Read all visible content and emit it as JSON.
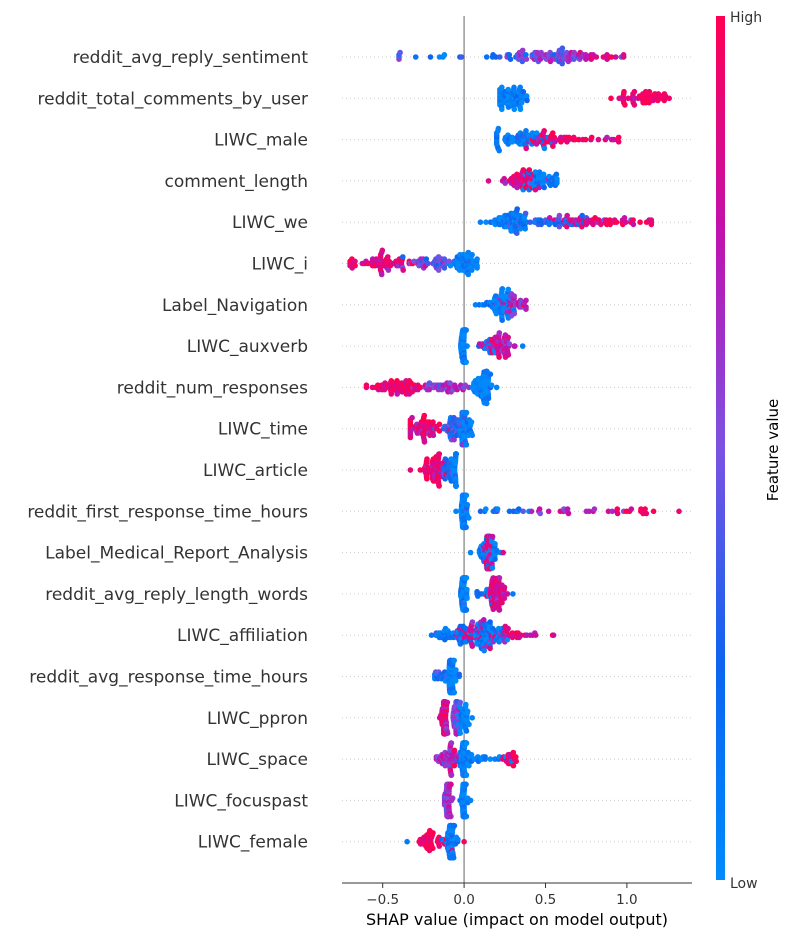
{
  "chart_data": {
    "type": "scatter",
    "subtype": "shap-beeswarm-summary",
    "xlabel": "SHAP value (impact on model output)",
    "xlim": [
      -0.75,
      1.4
    ],
    "xticks": [
      -0.5,
      0.0,
      0.5,
      1.0
    ],
    "xtick_labels": [
      "−0.5",
      "0.0",
      "0.5",
      "1.0"
    ],
    "colorbar": {
      "title": "Feature value",
      "high_label": "High",
      "low_label": "Low",
      "high_color": "#ff0052",
      "low_color": "#008bfb"
    },
    "features": [
      {
        "name": "reddit_avg_reply_sentiment",
        "range": [
          -0.4,
          0.98
        ],
        "clusters": [
          [
            0.55,
            0.15,
            0.55,
            0.6
          ],
          [
            0.25,
            0.25,
            0.3,
            0.2
          ],
          [
            -0.2,
            0.25,
            0.05,
            0.05
          ],
          [
            0.8,
            0.12,
            0.85,
            0.15
          ]
        ]
      },
      {
        "name": "reddit_total_comments_by_user",
        "range": [
          0.22,
          1.26
        ],
        "clusters": [
          [
            0.3,
            0.06,
            0.08,
            0.55
          ],
          [
            1.1,
            0.08,
            0.95,
            0.45
          ]
        ]
      },
      {
        "name": "LIWC_male",
        "range": [
          0.2,
          0.95
        ],
        "clusters": [
          [
            0.35,
            0.08,
            0.1,
            0.55
          ],
          [
            0.55,
            0.08,
            0.92,
            0.35
          ],
          [
            0.8,
            0.08,
            0.92,
            0.1
          ]
        ]
      },
      {
        "name": "comment_length",
        "range": [
          0.15,
          0.57
        ],
        "clusters": [
          [
            0.35,
            0.06,
            0.85,
            0.45
          ],
          [
            0.48,
            0.05,
            0.05,
            0.4
          ]
        ]
      },
      {
        "name": "LIWC_we",
        "range": [
          0.1,
          1.15
        ],
        "clusters": [
          [
            0.3,
            0.08,
            0.08,
            0.55
          ],
          [
            0.5,
            0.12,
            0.3,
            0.4
          ],
          [
            0.8,
            0.12,
            0.88,
            0.4
          ],
          [
            1.05,
            0.05,
            0.95,
            0.1
          ]
        ]
      },
      {
        "name": "LIWC_i",
        "range": [
          -0.7,
          0.08
        ],
        "clusters": [
          [
            -0.5,
            0.09,
            0.85,
            0.55
          ],
          [
            -0.2,
            0.1,
            0.45,
            0.35
          ],
          [
            0.0,
            0.04,
            0.05,
            0.5
          ]
        ]
      },
      {
        "name": "Label_Navigation",
        "range": [
          0.07,
          0.38
        ],
        "clusters": [
          [
            0.22,
            0.05,
            0.05,
            0.5
          ],
          [
            0.3,
            0.04,
            0.7,
            0.3
          ]
        ]
      },
      {
        "name": "LIWC_auxverb",
        "range": [
          -0.02,
          0.36
        ],
        "clusters": [
          [
            0.0,
            0.01,
            0.05,
            0.45
          ],
          [
            0.22,
            0.04,
            0.75,
            0.5
          ],
          [
            0.15,
            0.03,
            0.1,
            0.1
          ]
        ]
      },
      {
        "name": "reddit_num_responses",
        "range": [
          -0.6,
          0.2
        ],
        "clusters": [
          [
            -0.4,
            0.1,
            0.95,
            0.55
          ],
          [
            -0.1,
            0.08,
            0.6,
            0.35
          ],
          [
            0.12,
            0.03,
            0.05,
            0.6
          ]
        ]
      },
      {
        "name": "LIWC_time",
        "range": [
          -0.33,
          0.05
        ],
        "clusters": [
          [
            -0.25,
            0.05,
            0.9,
            0.5
          ],
          [
            -0.05,
            0.04,
            0.35,
            0.4
          ],
          [
            0.0,
            0.02,
            0.05,
            0.5
          ]
        ]
      },
      {
        "name": "LIWC_article",
        "range": [
          -0.33,
          -0.05
        ],
        "clusters": [
          [
            -0.18,
            0.04,
            0.9,
            0.55
          ],
          [
            -0.1,
            0.02,
            0.3,
            0.25
          ],
          [
            -0.05,
            0.01,
            0.05,
            0.35
          ]
        ]
      },
      {
        "name": "reddit_first_response_time_hours",
        "range": [
          -0.05,
          1.32
        ],
        "clusters": [
          [
            0.0,
            0.01,
            0.05,
            0.55
          ],
          [
            0.25,
            0.1,
            0.2,
            0.12
          ],
          [
            0.65,
            0.18,
            0.7,
            0.15
          ],
          [
            1.0,
            0.1,
            0.9,
            0.12
          ]
        ]
      },
      {
        "name": "Label_Medical_Report_Analysis",
        "range": [
          0.04,
          0.24
        ],
        "clusters": [
          [
            0.15,
            0.03,
            0.05,
            0.45
          ],
          [
            0.15,
            0.01,
            0.85,
            0.5
          ]
        ]
      },
      {
        "name": "reddit_avg_reply_length_words",
        "range": [
          -0.02,
          0.3
        ],
        "clusters": [
          [
            0.0,
            0.01,
            0.05,
            0.5
          ],
          [
            0.2,
            0.03,
            0.85,
            0.55
          ],
          [
            0.1,
            0.04,
            0.1,
            0.1
          ]
        ]
      },
      {
        "name": "LIWC_affiliation",
        "range": [
          -0.2,
          0.55
        ],
        "clusters": [
          [
            -0.05,
            0.06,
            0.15,
            0.4
          ],
          [
            0.15,
            0.05,
            0.1,
            0.6
          ],
          [
            0.3,
            0.1,
            0.85,
            0.3
          ],
          [
            0.05,
            0.06,
            0.8,
            0.3
          ]
        ]
      },
      {
        "name": "reddit_avg_response_time_hours",
        "range": [
          -0.18,
          -0.03
        ],
        "clusters": [
          [
            -0.08,
            0.02,
            0.05,
            0.5
          ],
          [
            -0.12,
            0.03,
            0.3,
            0.15
          ]
        ]
      },
      {
        "name": "LIWC_ppron",
        "range": [
          -0.15,
          0.05
        ],
        "clusters": [
          [
            -0.12,
            0.01,
            0.85,
            0.5
          ],
          [
            -0.05,
            0.01,
            0.55,
            0.4
          ],
          [
            0.0,
            0.02,
            0.05,
            0.3
          ]
        ]
      },
      {
        "name": "LIWC_space",
        "range": [
          -0.17,
          0.32
        ],
        "clusters": [
          [
            -0.1,
            0.03,
            0.7,
            0.45
          ],
          [
            0.0,
            0.02,
            0.05,
            0.6
          ],
          [
            0.15,
            0.06,
            0.05,
            0.15
          ],
          [
            0.28,
            0.03,
            0.95,
            0.15
          ]
        ]
      },
      {
        "name": "LIWC_focuspast",
        "range": [
          -0.12,
          0.04
        ],
        "clusters": [
          [
            -0.1,
            0.01,
            0.6,
            0.55
          ],
          [
            0.0,
            0.01,
            0.05,
            0.55
          ]
        ]
      },
      {
        "name": "LIWC_female",
        "range": [
          -0.35,
          0.0
        ],
        "clusters": [
          [
            -0.08,
            0.02,
            0.1,
            0.6
          ],
          [
            -0.22,
            0.06,
            0.95,
            0.35
          ]
        ]
      }
    ]
  }
}
